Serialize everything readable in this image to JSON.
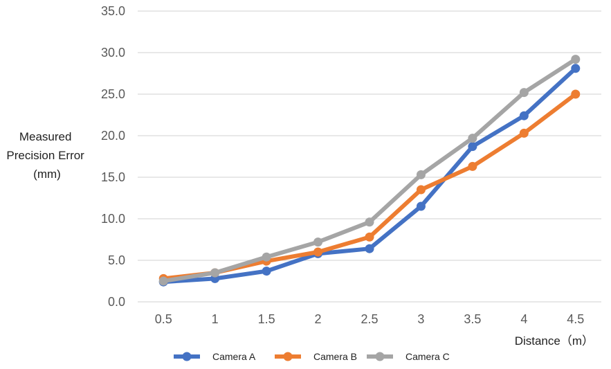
{
  "chart_data": {
    "type": "line",
    "x": [
      "0.5",
      "1",
      "1.5",
      "2",
      "2.5",
      "3",
      "3.5",
      "4",
      "4.5"
    ],
    "ylim": [
      0,
      35
    ],
    "y_ticks": [
      "0.0",
      "5.0",
      "10.0",
      "15.0",
      "20.0",
      "25.0",
      "30.0",
      "35.0"
    ],
    "ylabel": [
      "Measured",
      "Precision Error",
      "(mm)"
    ],
    "xlabel": "Distance（m）",
    "grid": true,
    "legend_position": "bottom",
    "series": [
      {
        "name": "Camera A",
        "color": "#4472C4",
        "values": [
          2.4,
          2.8,
          3.7,
          5.8,
          6.4,
          11.5,
          18.7,
          22.4,
          28.1
        ]
      },
      {
        "name": "Camera B",
        "color": "#ED7D31",
        "values": [
          2.8,
          3.5,
          4.9,
          6.0,
          7.8,
          13.5,
          16.3,
          20.3,
          25.0
        ]
      },
      {
        "name": "Camera C",
        "color": "#A5A5A5",
        "values": [
          2.5,
          3.5,
          5.4,
          7.2,
          9.6,
          15.3,
          19.7,
          25.2,
          29.2
        ]
      }
    ]
  }
}
